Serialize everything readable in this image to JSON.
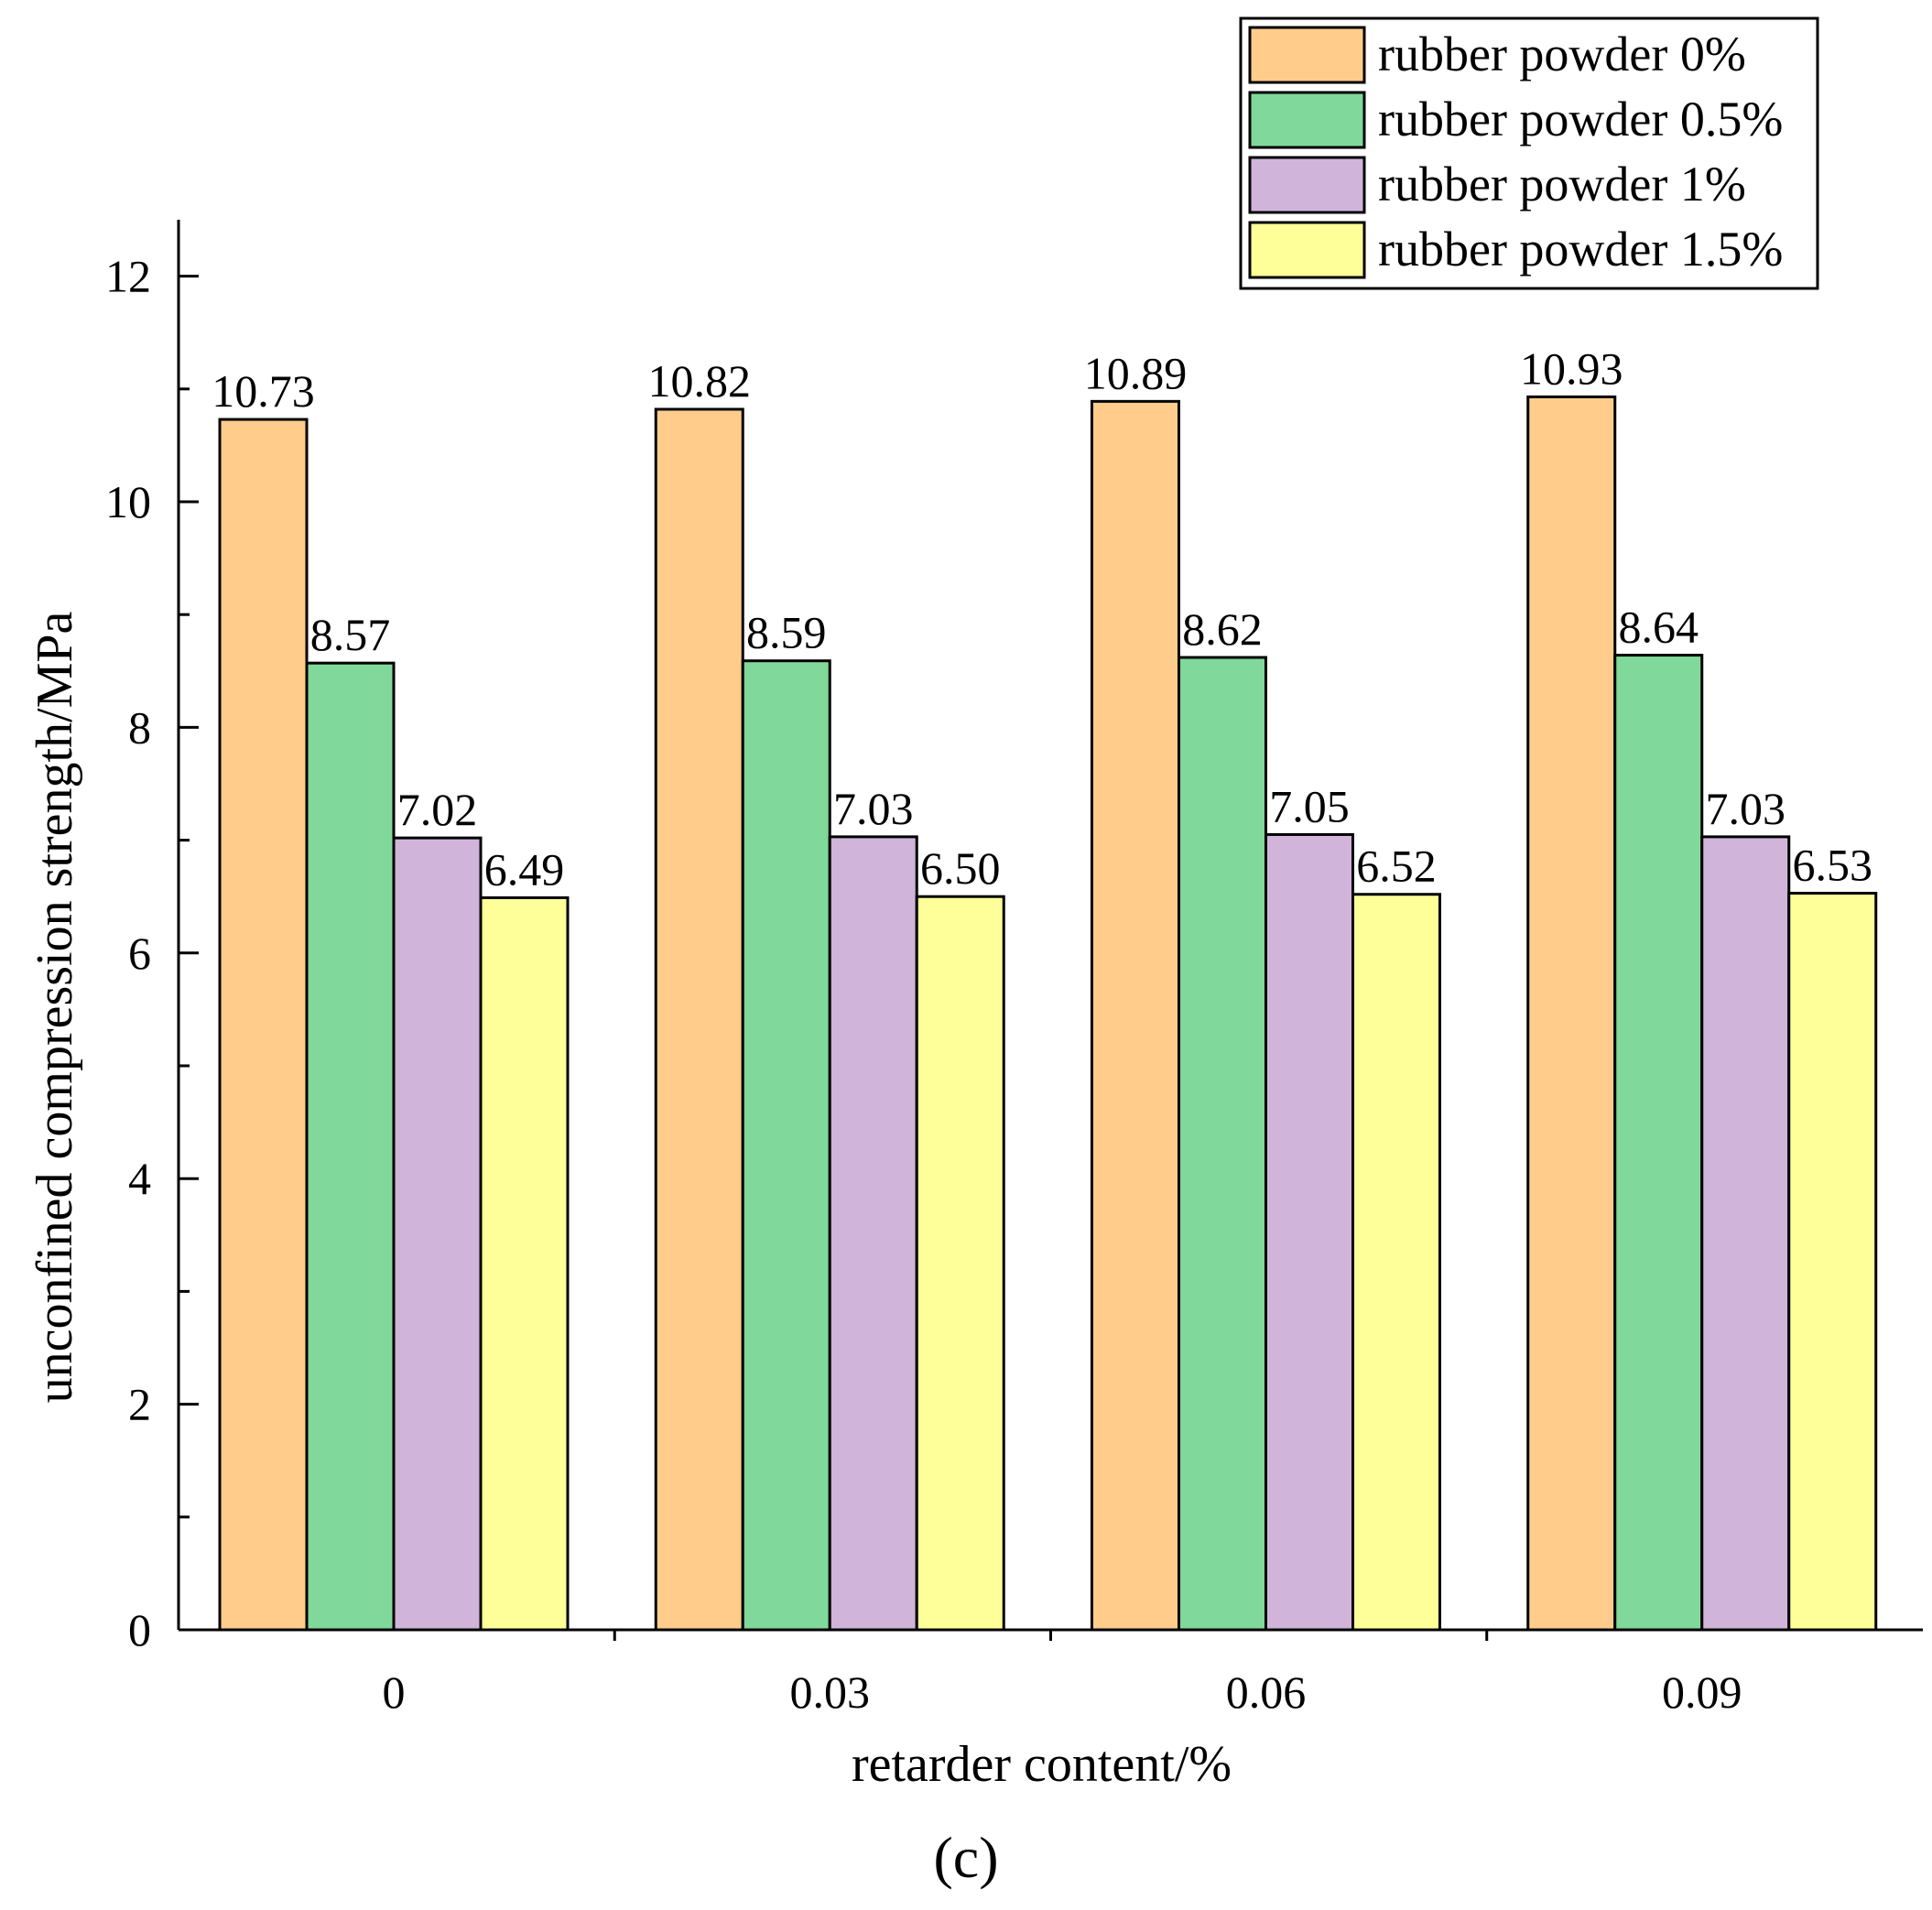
{
  "chart_data": {
    "type": "bar",
    "title": "",
    "xlabel": "retarder content/%",
    "ylabel": "unconfined compression strength/MPa",
    "categories": [
      "0",
      "0.03",
      "0.06",
      "0.09"
    ],
    "ylim": [
      0,
      12.5
    ],
    "yticks": [
      0,
      2,
      4,
      6,
      8,
      10,
      12
    ],
    "grid": false,
    "legend_position": "top-right",
    "series": [
      {
        "name": "rubber powder 0%",
        "color": "#FFCC8C",
        "values": [
          10.73,
          10.82,
          10.89,
          10.93
        ],
        "labels": [
          "10.73",
          "10.82",
          "10.89",
          "10.93"
        ]
      },
      {
        "name": "rubber powder 0.5%",
        "color": "#80D89A",
        "values": [
          8.57,
          8.59,
          8.62,
          8.64
        ],
        "labels": [
          "8.57",
          "8.59",
          "8.62",
          "8.64"
        ]
      },
      {
        "name": "rubber powder 1%",
        "color": "#D0B4DA",
        "values": [
          7.02,
          7.03,
          7.05,
          7.03
        ],
        "labels": [
          "7.02",
          "7.03",
          "7.05",
          "7.03"
        ]
      },
      {
        "name": "rubber powder 1.5%",
        "color": "#FFFF99",
        "values": [
          6.49,
          6.5,
          6.52,
          6.53
        ],
        "labels": [
          "6.49",
          "6.50",
          "6.52",
          "6.53"
        ]
      }
    ],
    "panel_label": "(c)"
  }
}
